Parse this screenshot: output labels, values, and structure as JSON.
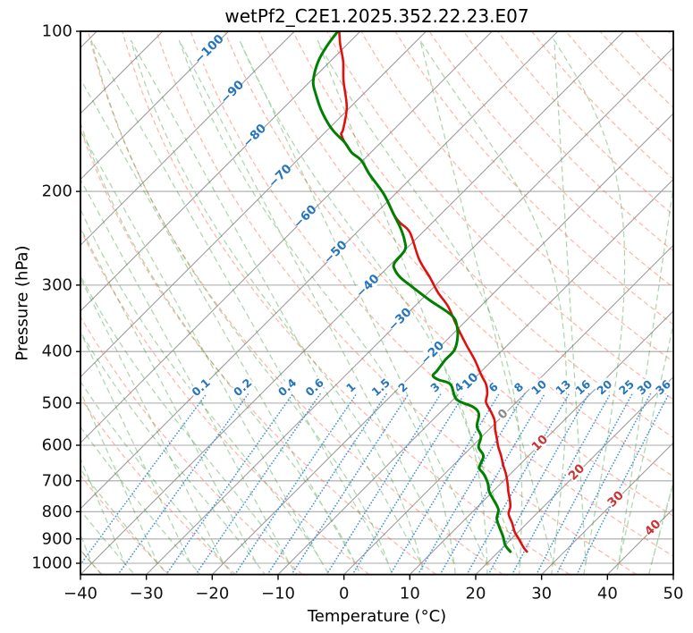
{
  "chart_data": {
    "type": "skewt_log_p",
    "title": "wetPf2_C2E1.2025.352.22.23.E07",
    "xlabel": "Temperature (°C)",
    "ylabel": "Pressure (hPa)",
    "xlim": [
      -40,
      50
    ],
    "pressure_lim": [
      1050,
      100
    ],
    "skew_deg": 45,
    "x_ticks": [
      -40,
      -30,
      -20,
      -10,
      0,
      10,
      20,
      30,
      40,
      50
    ],
    "p_ticks": [
      100,
      200,
      300,
      400,
      500,
      600,
      700,
      800,
      900,
      1000
    ],
    "isotherms": {
      "min": -120,
      "max": 50,
      "step": 10
    },
    "isotherm_labels": [
      {
        "t": -100,
        "p": 108
      },
      {
        "t": -90,
        "p": 130
      },
      {
        "t": -80,
        "p": 157
      },
      {
        "t": -70,
        "p": 187
      },
      {
        "t": -60,
        "p": 223
      },
      {
        "t": -50,
        "p": 260
      },
      {
        "t": -40,
        "p": 301
      },
      {
        "t": -30,
        "p": 348
      },
      {
        "t": -20,
        "p": 402
      },
      {
        "t": -10,
        "p": 461
      },
      {
        "t": 0,
        "p": 524
      },
      {
        "t": 10,
        "p": 594
      },
      {
        "t": 20,
        "p": 674
      },
      {
        "t": 30,
        "p": 757
      },
      {
        "t": 40,
        "p": 857
      }
    ],
    "dry_adiabats": {
      "theta_min_c": -40,
      "theta_max_c": 200,
      "step_c": 10
    },
    "moist_adiabats": {
      "t0_min_c": -40,
      "t0_max_c": 45,
      "step_c": 5
    },
    "mixing_ratio": {
      "values_g_kg": [
        0.1,
        0.2,
        0.4,
        0.6,
        1,
        1.5,
        2,
        3,
        4,
        6,
        8,
        10,
        13,
        16,
        20,
        25,
        30,
        36
      ],
      "label_pressure_hpa": 473,
      "pressure_range_hpa": [
        1050,
        480
      ]
    },
    "series": [
      {
        "name": "temperature",
        "color": "#e01010",
        "data": [
          [
            100,
            -83.2
          ],
          [
            106,
            -81.0
          ],
          [
            114,
            -78.0
          ],
          [
            124,
            -75.0
          ],
          [
            139,
            -70.5
          ],
          [
            153,
            -67.7
          ],
          [
            156,
            -67.3
          ],
          [
            162,
            -65.4
          ],
          [
            169,
            -62.9
          ],
          [
            175,
            -60.2
          ],
          [
            186,
            -56.8
          ],
          [
            202,
            -51.8
          ],
          [
            221,
            -47.1
          ],
          [
            229,
            -44.9
          ],
          [
            239,
            -41.9
          ],
          [
            268,
            -36.5
          ],
          [
            290,
            -32.1
          ],
          [
            310,
            -28.5
          ],
          [
            329,
            -24.9
          ],
          [
            356,
            -20.9
          ],
          [
            385,
            -16.8
          ],
          [
            415,
            -12.7
          ],
          [
            444,
            -9.3
          ],
          [
            461,
            -7.3
          ],
          [
            480,
            -5.7
          ],
          [
            498,
            -4.6
          ],
          [
            518,
            -2.5
          ],
          [
            538,
            -0.6
          ],
          [
            560,
            0.9
          ],
          [
            582,
            2.5
          ],
          [
            605,
            4.1
          ],
          [
            629,
            5.9
          ],
          [
            653,
            7.5
          ],
          [
            679,
            9.3
          ],
          [
            706,
            10.9
          ],
          [
            734,
            12.4
          ],
          [
            763,
            14.0
          ],
          [
            784,
            15.0
          ],
          [
            808,
            15.8
          ],
          [
            840,
            17.7
          ],
          [
            874,
            19.5
          ],
          [
            901,
            21.2
          ],
          [
            933,
            23.1
          ],
          [
            951,
            24.3
          ]
        ]
      },
      {
        "name": "dewpoint",
        "color": "#008000",
        "data": [
          [
            100,
            -83.4
          ],
          [
            106,
            -82.9
          ],
          [
            114,
            -81.8
          ],
          [
            124,
            -79.6
          ],
          [
            131,
            -77.3
          ],
          [
            140,
            -74.2
          ],
          [
            149,
            -70.9
          ],
          [
            155,
            -68.5
          ],
          [
            162,
            -65.4
          ],
          [
            169,
            -62.9
          ],
          [
            175,
            -60.2
          ],
          [
            186,
            -56.8
          ],
          [
            202,
            -51.8
          ],
          [
            221,
            -47.1
          ],
          [
            234,
            -44.1
          ],
          [
            248,
            -41.4
          ],
          [
            258,
            -40.0
          ],
          [
            273,
            -39.6
          ],
          [
            281,
            -38.5
          ],
          [
            290,
            -36.6
          ],
          [
            299,
            -34.2
          ],
          [
            320,
            -28.7
          ],
          [
            342,
            -23.0
          ],
          [
            358,
            -20.6
          ],
          [
            378,
            -18.6
          ],
          [
            398,
            -17.3
          ],
          [
            415,
            -17.2
          ],
          [
            435,
            -16.8
          ],
          [
            444,
            -16.7
          ],
          [
            452,
            -15.2
          ],
          [
            461,
            -12.7
          ],
          [
            492,
            -9.5
          ],
          [
            508,
            -5.9
          ],
          [
            524,
            -3.9
          ],
          [
            553,
            -2.3
          ],
          [
            577,
            -0.2
          ],
          [
            605,
            1.1
          ],
          [
            629,
            3.2
          ],
          [
            661,
            4.3
          ],
          [
            679,
            5.9
          ],
          [
            706,
            7.9
          ],
          [
            734,
            9.5
          ],
          [
            763,
            11.6
          ],
          [
            793,
            13.6
          ],
          [
            824,
            14.7
          ],
          [
            857,
            16.5
          ],
          [
            891,
            18.4
          ],
          [
            926,
            20.1
          ],
          [
            951,
            21.8
          ]
        ]
      }
    ],
    "colors": {
      "isobar": "#a8a8a8",
      "isotherm": "#9d9d9d",
      "dry_adiabat": "rgba(255,99,71,0.45)",
      "moist_adiabat": "rgba(40,145,40,0.36)",
      "mixing_line": "#4794dc",
      "mixing_label": "#2776bb",
      "label_negative": "#2776bb",
      "label_zero": "#8a8a8a",
      "label_positive": "#cb3434",
      "frame": "#000000"
    }
  }
}
